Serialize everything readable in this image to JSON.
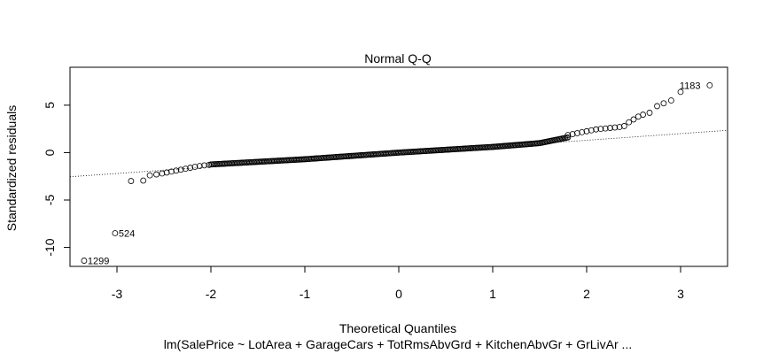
{
  "chart_data": {
    "type": "scatter",
    "title": "Normal Q-Q",
    "xlabel": "Theoretical Quantiles",
    "ylabel": "Standardized residuals",
    "subtitle": "lm(SalePrice ~ LotArea + GarageCars + TotRmsAbvGrd + KitchenAbvGr + GrLivAr ...",
    "xlim": [
      -3.5,
      3.5
    ],
    "ylim": [
      -12,
      9
    ],
    "x_ticks": [
      -3,
      -2,
      -1,
      0,
      1,
      2,
      3
    ],
    "y_ticks": [
      -10,
      -5,
      0,
      5
    ],
    "grid": false,
    "reference_line": {
      "points": [
        [
          -3.5,
          -2.55
        ],
        [
          3.5,
          2.35
        ]
      ],
      "style": "dotted"
    },
    "labeled_points": [
      {
        "label": "1183",
        "x": 3.31,
        "y": 7.1
      },
      {
        "label": "524",
        "x": -3.02,
        "y": -8.5
      },
      {
        "label": "1299",
        "x": -3.35,
        "y": -11.4
      }
    ],
    "tail_points": {
      "lower": [
        [
          -2.85,
          -3.0
        ],
        [
          -2.72,
          -2.95
        ],
        [
          -2.65,
          -2.4
        ],
        [
          -2.58,
          -2.3
        ],
        [
          -2.52,
          -2.2
        ],
        [
          -2.47,
          -2.1
        ],
        [
          -2.42,
          -2.0
        ],
        [
          -2.37,
          -1.9
        ],
        [
          -2.32,
          -1.8
        ],
        [
          -2.27,
          -1.7
        ],
        [
          -2.22,
          -1.6
        ],
        [
          -2.17,
          -1.5
        ],
        [
          -2.12,
          -1.42
        ],
        [
          -2.07,
          -1.35
        ],
        [
          -2.02,
          -1.3
        ]
      ],
      "upper": [
        [
          1.8,
          1.85
        ],
        [
          1.85,
          1.95
        ],
        [
          1.9,
          2.05
        ],
        [
          1.95,
          2.15
        ],
        [
          2.0,
          2.25
        ],
        [
          2.05,
          2.35
        ],
        [
          2.1,
          2.45
        ],
        [
          2.15,
          2.5
        ],
        [
          2.2,
          2.55
        ],
        [
          2.25,
          2.6
        ],
        [
          2.3,
          2.65
        ],
        [
          2.35,
          2.7
        ],
        [
          2.4,
          2.8
        ],
        [
          2.45,
          3.2
        ],
        [
          2.5,
          3.5
        ],
        [
          2.55,
          3.8
        ],
        [
          2.6,
          4.0
        ],
        [
          2.67,
          4.2
        ],
        [
          2.75,
          4.9
        ],
        [
          2.82,
          5.2
        ],
        [
          2.9,
          5.5
        ],
        [
          3.0,
          6.4
        ]
      ]
    },
    "body_trend": {
      "knots": [
        [
          -2.0,
          -1.25
        ],
        [
          -1.0,
          -0.7
        ],
        [
          0.0,
          0.0
        ],
        [
          1.0,
          0.6
        ],
        [
          1.5,
          1.0
        ],
        [
          1.8,
          1.6
        ]
      ],
      "x_range": [
        -2.0,
        1.8
      ],
      "count": 260
    }
  }
}
